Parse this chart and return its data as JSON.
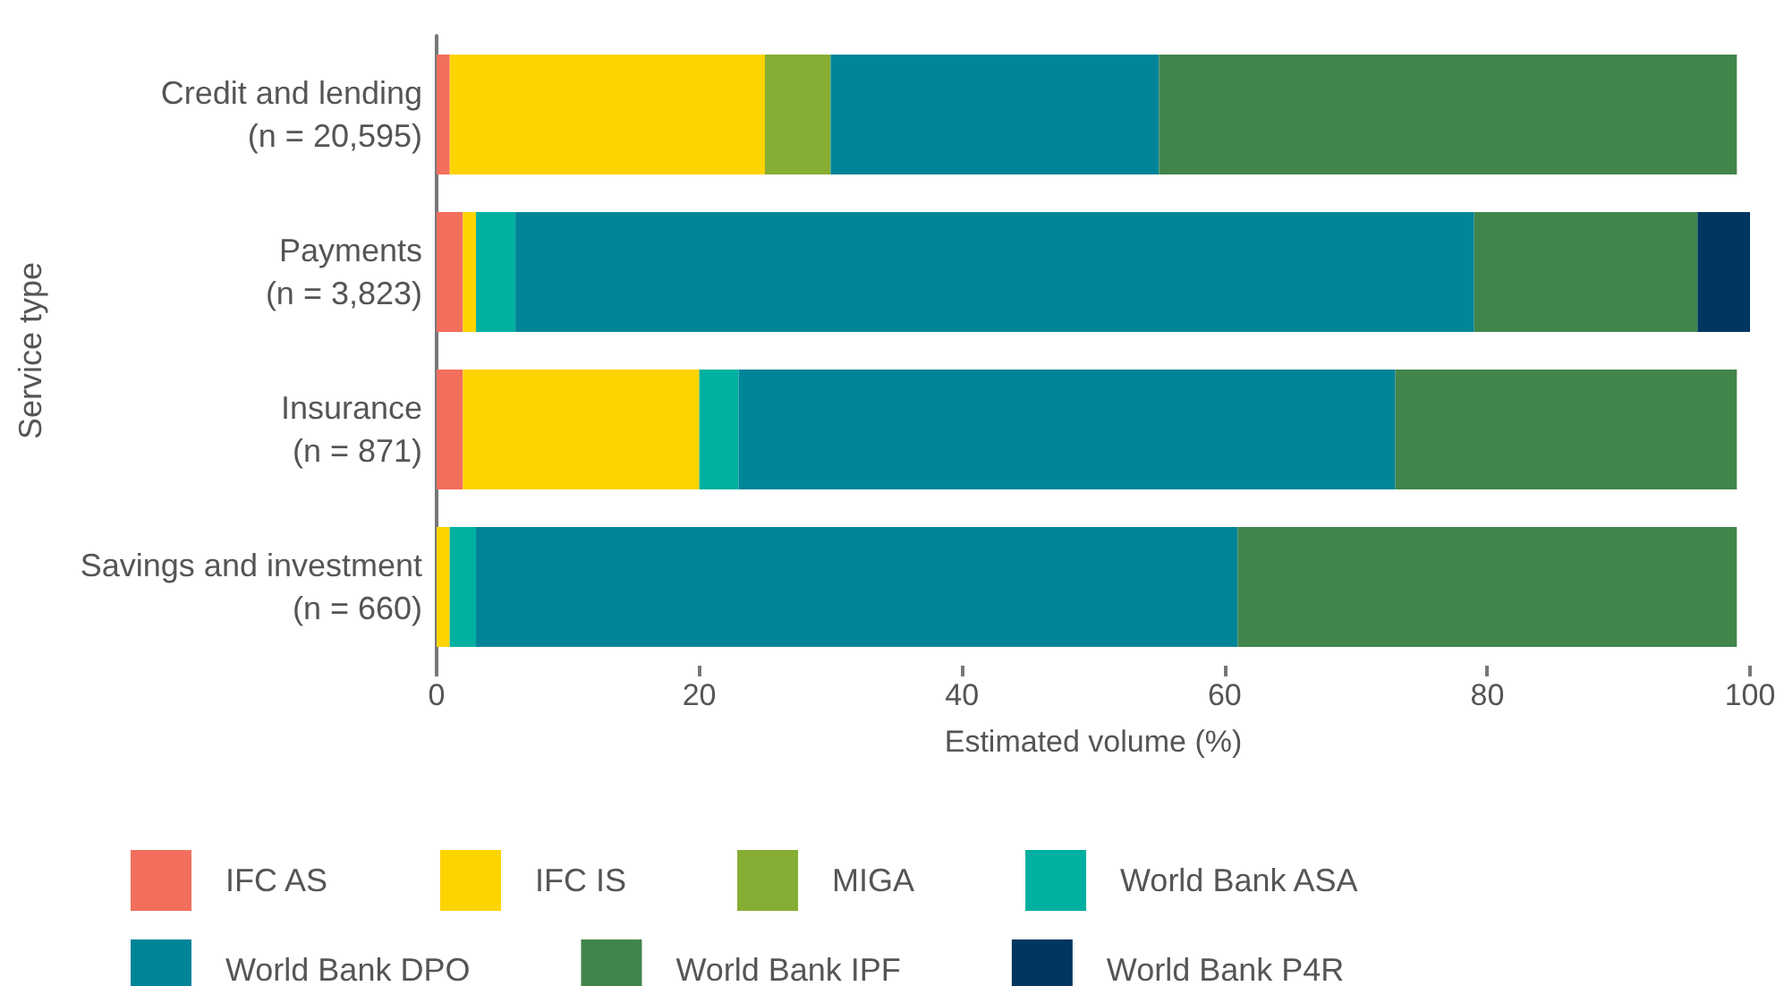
{
  "chart_data": {
    "type": "bar",
    "orientation": "horizontal",
    "stacked": true,
    "xlabel": "Estimated volume (%)",
    "ylabel": "Service type",
    "categories": [
      "Credit and lending (n = 20,595)",
      "Payments (n = 3,823)",
      "Insurance (n = 871)",
      "Savings and investment (n = 660)"
    ],
    "series": [
      {
        "name": "IFC AS",
        "color": "#f26f5d",
        "values": [
          1,
          2,
          2,
          0
        ]
      },
      {
        "name": "IFC IS",
        "color": "#fdd300",
        "values": [
          24,
          1,
          18,
          1
        ]
      },
      {
        "name": "MIGA",
        "color": "#87ae34",
        "values": [
          5,
          0,
          0,
          0
        ]
      },
      {
        "name": "World Bank ASA",
        "color": "#00b0a0",
        "values": [
          0,
          3,
          3,
          2
        ]
      },
      {
        "name": "World Bank DPO",
        "color": "#008498",
        "values": [
          25,
          73,
          50,
          58
        ]
      },
      {
        "name": "World Bank IPF",
        "color": "#42854b",
        "values": [
          44,
          17,
          26,
          38
        ]
      },
      {
        "name": "World Bank P4R",
        "color": "#003660",
        "values": [
          0,
          4,
          0,
          0
        ]
      }
    ],
    "xlim": [
      0,
      100
    ],
    "xticks": [
      0,
      20,
      40,
      60,
      80,
      100
    ],
    "grid": false,
    "legend": "bottom"
  }
}
